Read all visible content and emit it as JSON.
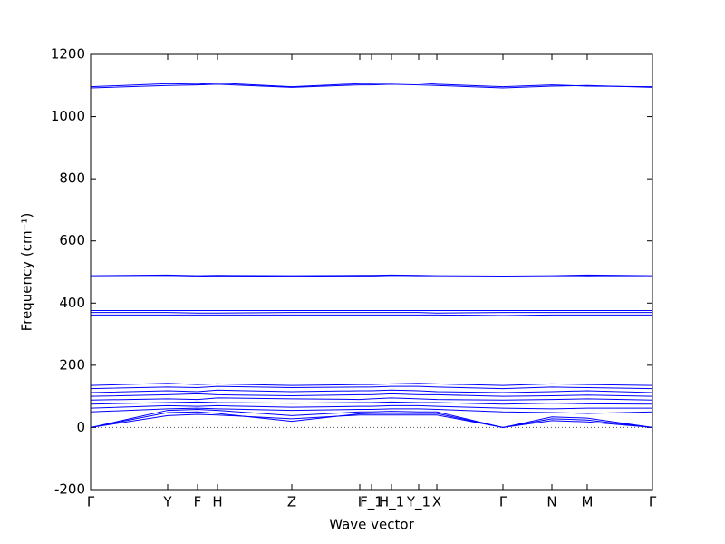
{
  "chart_data": {
    "type": "line",
    "xlabel": "Wave vector",
    "ylabel": "Frequency (cm⁻¹)",
    "x": [
      0,
      85,
      118,
      140,
      222,
      297,
      310,
      332,
      362,
      382,
      455,
      509,
      548,
      620
    ],
    "xlim": [
      0,
      620
    ],
    "xticks": [
      {
        "value": 0,
        "label": "Γ"
      },
      {
        "value": 85,
        "label": "Y"
      },
      {
        "value": 118,
        "label": "F"
      },
      {
        "value": 140,
        "label": "H"
      },
      {
        "value": 222,
        "label": "Z"
      },
      {
        "value": 297,
        "label": "I"
      },
      {
        "value": 310,
        "label": "F_1"
      },
      {
        "value": 332,
        "label": "H_1"
      },
      {
        "value": 362,
        "label": "Y_1"
      },
      {
        "value": 382,
        "label": "X"
      },
      {
        "value": 455,
        "label": "Γ"
      },
      {
        "value": 509,
        "label": "N"
      },
      {
        "value": 548,
        "label": "M"
      },
      {
        "value": 620,
        "label": "Γ"
      }
    ],
    "ylim": [
      -200,
      1200
    ],
    "yticks": [
      -200,
      0,
      200,
      400,
      600,
      800,
      1000,
      1200
    ],
    "zero_line": true,
    "series": [
      {
        "color": "#0000ff",
        "values": [
          0,
          38,
          42,
          40,
          28,
          40,
          40,
          40,
          40,
          40,
          0,
          22,
          18,
          0
        ]
      },
      {
        "color": "#0000ff",
        "values": [
          0,
          48,
          50,
          45,
          20,
          44,
          45,
          45,
          45,
          45,
          0,
          28,
          24,
          0
        ]
      },
      {
        "color": "#0000ff",
        "values": [
          0,
          55,
          58,
          55,
          38,
          50,
          50,
          52,
          50,
          50,
          0,
          34,
          30,
          0
        ]
      },
      {
        "color": "#0000ff",
        "values": [
          50,
          60,
          62,
          60,
          55,
          58,
          58,
          60,
          60,
          58,
          50,
          48,
          45,
          50
        ]
      },
      {
        "color": "#0000ff",
        "values": [
          62,
          70,
          68,
          70,
          65,
          68,
          68,
          70,
          70,
          68,
          62,
          60,
          62,
          62
        ]
      },
      {
        "color": "#0000ff",
        "values": [
          75,
          80,
          82,
          80,
          78,
          80,
          80,
          82,
          80,
          80,
          75,
          78,
          76,
          75
        ]
      },
      {
        "color": "#0000ff",
        "values": [
          88,
          92,
          90,
          95,
          92,
          90,
          92,
          95,
          92,
          90,
          88,
          90,
          92,
          88
        ]
      },
      {
        "color": "#0000ff",
        "values": [
          100,
          105,
          108,
          105,
          102,
          105,
          105,
          108,
          105,
          105,
          100,
          102,
          104,
          100
        ]
      },
      {
        "color": "#0000ff",
        "values": [
          112,
          118,
          115,
          120,
          115,
          118,
          118,
          120,
          118,
          115,
          112,
          115,
          118,
          112
        ]
      },
      {
        "color": "#0000ff",
        "values": [
          125,
          130,
          128,
          132,
          128,
          130,
          130,
          132,
          132,
          130,
          125,
          130,
          128,
          125
        ]
      },
      {
        "color": "#0000ff",
        "values": [
          135,
          142,
          138,
          140,
          135,
          138,
          138,
          140,
          142,
          140,
          135,
          140,
          138,
          135
        ]
      },
      {
        "color": "#0000ff",
        "values": [
          362,
          362,
          362,
          362,
          362,
          362,
          362,
          362,
          362,
          362,
          360,
          362,
          362,
          362
        ]
      },
      {
        "color": "#0000ff",
        "values": [
          370,
          370,
          368,
          368,
          370,
          370,
          370,
          370,
          370,
          368,
          370,
          370,
          370,
          370
        ]
      },
      {
        "color": "#0000ff",
        "values": [
          376,
          376,
          376,
          376,
          376,
          376,
          376,
          376,
          376,
          376,
          376,
          376,
          376,
          376
        ]
      },
      {
        "color": "#0000ff",
        "values": [
          484,
          485,
          485,
          486,
          485,
          486,
          486,
          485,
          485,
          484,
          484,
          484,
          486,
          484
        ]
      },
      {
        "color": "#0000ff",
        "values": [
          488,
          490,
          488,
          489,
          488,
          489,
          489,
          490,
          489,
          488,
          487,
          488,
          490,
          488
        ]
      },
      {
        "color": "#0000ff",
        "values": [
          1092,
          1100,
          1102,
          1104,
          1094,
          1102,
          1102,
          1104,
          1102,
          1100,
          1092,
          1098,
          1100,
          1094
        ]
      },
      {
        "color": "#0000ff",
        "values": [
          1096,
          1106,
          1104,
          1108,
          1096,
          1106,
          1106,
          1108,
          1108,
          1104,
          1096,
          1102,
          1098,
          1096
        ]
      }
    ]
  }
}
